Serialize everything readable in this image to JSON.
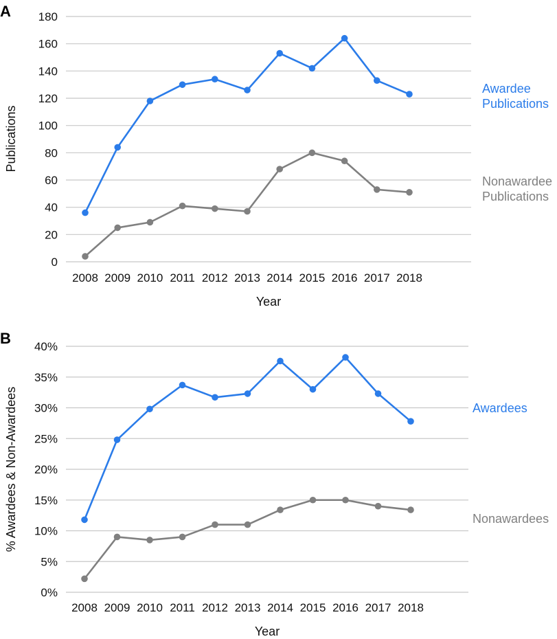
{
  "chart_data": [
    {
      "panel": "A",
      "type": "line",
      "title": "",
      "xlabel": "Year",
      "ylabel": "Publications",
      "ylim": [
        0,
        180
      ],
      "ytick_step": 20,
      "ytick_labels": [
        "0",
        "20",
        "40",
        "60",
        "80",
        "100",
        "120",
        "140",
        "160",
        "180"
      ],
      "grid": true,
      "categories": [
        "2008",
        "2009",
        "2010",
        "2011",
        "2012",
        "2013",
        "2014",
        "2015",
        "2016",
        "2017",
        "2018"
      ],
      "series": [
        {
          "name": "Awardee Publications",
          "label_lines": [
            "Awardee",
            "Publications"
          ],
          "color": "#2b7ce9",
          "values": [
            36,
            84,
            118,
            130,
            134,
            126,
            153,
            142,
            164,
            133,
            123
          ]
        },
        {
          "name": "Nonawardee Publications",
          "label_lines": [
            "Nonawardee",
            "Publications"
          ],
          "color": "#808080",
          "values": [
            4,
            25,
            29,
            41,
            39,
            37,
            68,
            80,
            74,
            53,
            51
          ]
        }
      ]
    },
    {
      "panel": "B",
      "type": "line",
      "title": "",
      "xlabel": "Year",
      "ylabel": "% Awardees & Non-Awardees",
      "ylim": [
        0,
        40
      ],
      "ytick_step": 5,
      "ytick_labels": [
        "0%",
        "5%",
        "10%",
        "15%",
        "20%",
        "25%",
        "30%",
        "35%",
        "40%"
      ],
      "grid": true,
      "categories": [
        "2008",
        "2009",
        "2010",
        "2011",
        "2012",
        "2013",
        "2014",
        "2015",
        "2016",
        "2017",
        "2018"
      ],
      "series": [
        {
          "name": "Awardees",
          "label_lines": [
            "Awardees"
          ],
          "color": "#2b7ce9",
          "values": [
            11.8,
            24.8,
            29.8,
            33.7,
            31.7,
            32.3,
            37.6,
            33.0,
            38.2,
            32.3,
            27.8
          ]
        },
        {
          "name": "Nonawardees",
          "label_lines": [
            "Nonawardees"
          ],
          "color": "#808080",
          "values": [
            2.2,
            9.0,
            8.5,
            9.0,
            11.0,
            11.0,
            13.4,
            15.0,
            15.0,
            14.0,
            13.4
          ]
        }
      ]
    }
  ]
}
